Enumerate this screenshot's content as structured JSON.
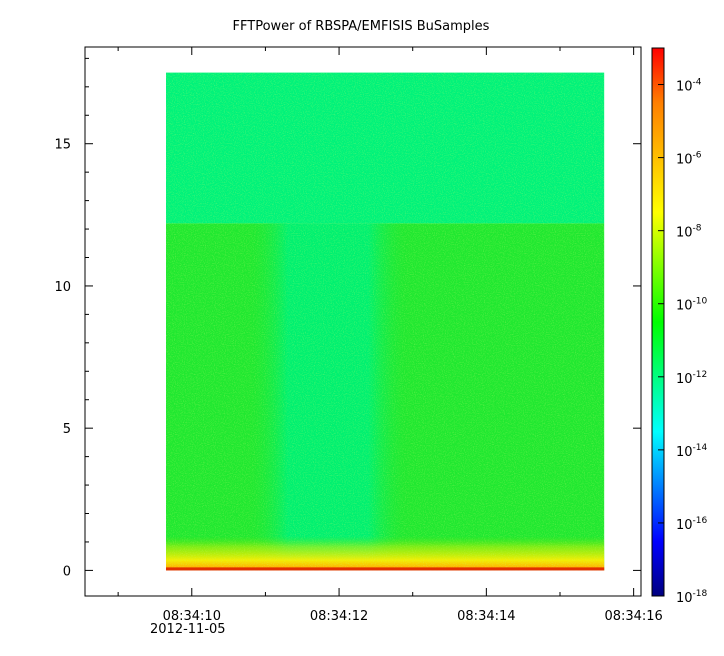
{
  "chart_data": {
    "type": "heatmap",
    "title": "FFTPower of RBSPA/EMFISIS  BuSamples",
    "xlabel": "",
    "ylabel": "",
    "x_tick_labels": [
      "08:34:10",
      "08:34:12",
      "08:34:14",
      "08:34:16"
    ],
    "x_date_label": "2012-11-05",
    "x_range_seconds": [
      8.55,
      16.1
    ],
    "data_time_range_seconds": [
      9.65,
      15.6
    ],
    "y_ticks": [
      0,
      5,
      10,
      15
    ],
    "ylim": [
      -0.9,
      18.4
    ],
    "data_y_range": [
      0,
      17.5
    ],
    "colorbar": {
      "scale": "log",
      "range": [
        1e-18,
        0.001
      ],
      "ticks": [
        {
          "base": "10",
          "exp": "-4",
          "value": 0.0001
        },
        {
          "base": "10",
          "exp": "-6",
          "value": 1e-06
        },
        {
          "base": "10",
          "exp": "-8",
          "value": 1e-08
        },
        {
          "base": "10",
          "exp": "-10",
          "value": 1e-10
        },
        {
          "base": "10",
          "exp": "-12",
          "value": 1e-12
        },
        {
          "base": "10",
          "exp": "-14",
          "value": 1e-14
        },
        {
          "base": "10",
          "exp": "-16",
          "value": 1e-16
        },
        {
          "base": "10",
          "exp": "-18",
          "value": 1e-18
        }
      ],
      "colors": [
        "#00007f",
        "#0000ff",
        "#007fff",
        "#00ffff",
        "#00ff80",
        "#00ff00",
        "#7fff00",
        "#ffff00",
        "#ffbf00",
        "#ff7f00",
        "#ff0000"
      ]
    },
    "features": {
      "band_cutoff_y": 12.2,
      "low_power_gap_seconds": [
        11.1,
        12.6
      ],
      "low_freq_enhancement_y": [
        0,
        1.2
      ]
    }
  }
}
